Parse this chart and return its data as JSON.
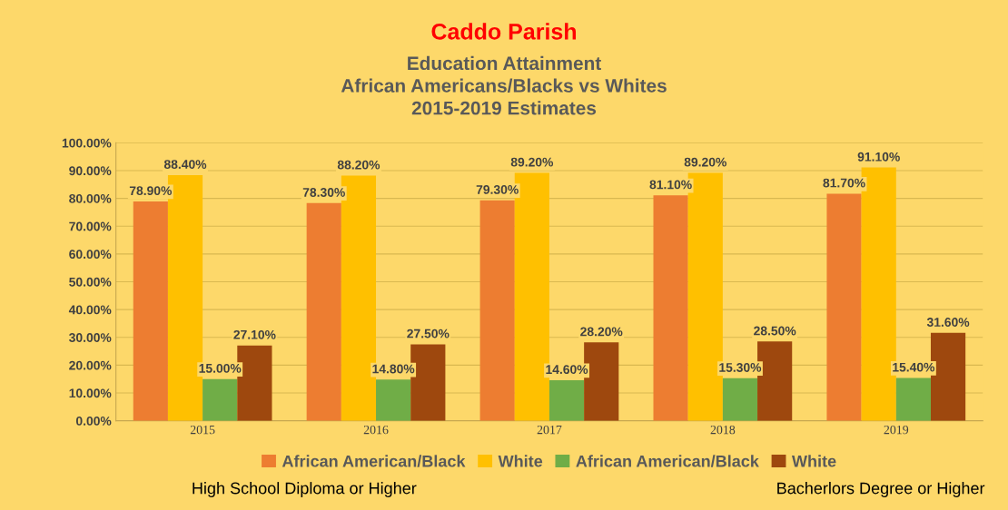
{
  "chart_data": {
    "type": "bar",
    "title": "Caddo Parish",
    "subtitle": "Education Attainment\nAfrican Americans/Blacks vs Whites\n2015-2019 Estimates",
    "categories": [
      "2015",
      "2016",
      "2017",
      "2018",
      "2019"
    ],
    "series": [
      {
        "name": "African American/Black",
        "color": "#ed7d31",
        "values": [
          78.9,
          78.3,
          79.3,
          81.1,
          81.7
        ],
        "value_labels": [
          "78.90%",
          "78.30%",
          "79.30%",
          "81.10%",
          "81.70%"
        ]
      },
      {
        "name": "White",
        "color": "#ffc000",
        "values": [
          88.4,
          88.2,
          89.2,
          89.2,
          91.1
        ],
        "value_labels": [
          "88.40%",
          "88.20%",
          "89.20%",
          "89.20%",
          "91.10%"
        ]
      },
      {
        "name": "African American/Black",
        "color": "#70ad47",
        "values": [
          15.0,
          14.8,
          14.6,
          15.3,
          15.4
        ],
        "value_labels": [
          "15.00%",
          "14.80%",
          "14.60%",
          "15.30%",
          "15.40%"
        ]
      },
      {
        "name": "White",
        "color": "#9e480e",
        "values": [
          27.1,
          27.5,
          28.2,
          28.5,
          31.6
        ],
        "value_labels": [
          "27.10%",
          "27.50%",
          "28.20%",
          "28.50%",
          "31.60%"
        ]
      }
    ],
    "ylim": [
      0,
      100
    ],
    "yticks": [
      {
        "value": 0,
        "label": "0.00%"
      },
      {
        "value": 10,
        "label": "10.00%"
      },
      {
        "value": 20,
        "label": "20.00%"
      },
      {
        "value": 30,
        "label": "30.00%"
      },
      {
        "value": 40,
        "label": "40.00%"
      },
      {
        "value": 50,
        "label": "50.00%"
      },
      {
        "value": 60,
        "label": "60.00%"
      },
      {
        "value": 70,
        "label": "70.00%"
      },
      {
        "value": 80,
        "label": "80.00%"
      },
      {
        "value": 90,
        "label": "90.00%"
      },
      {
        "value": 100,
        "label": "100.00%"
      }
    ],
    "grid": "y",
    "legend": "bottom",
    "annotations": [
      "High School Diploma or Higher",
      "Bacherlors Degree or Higher"
    ]
  }
}
